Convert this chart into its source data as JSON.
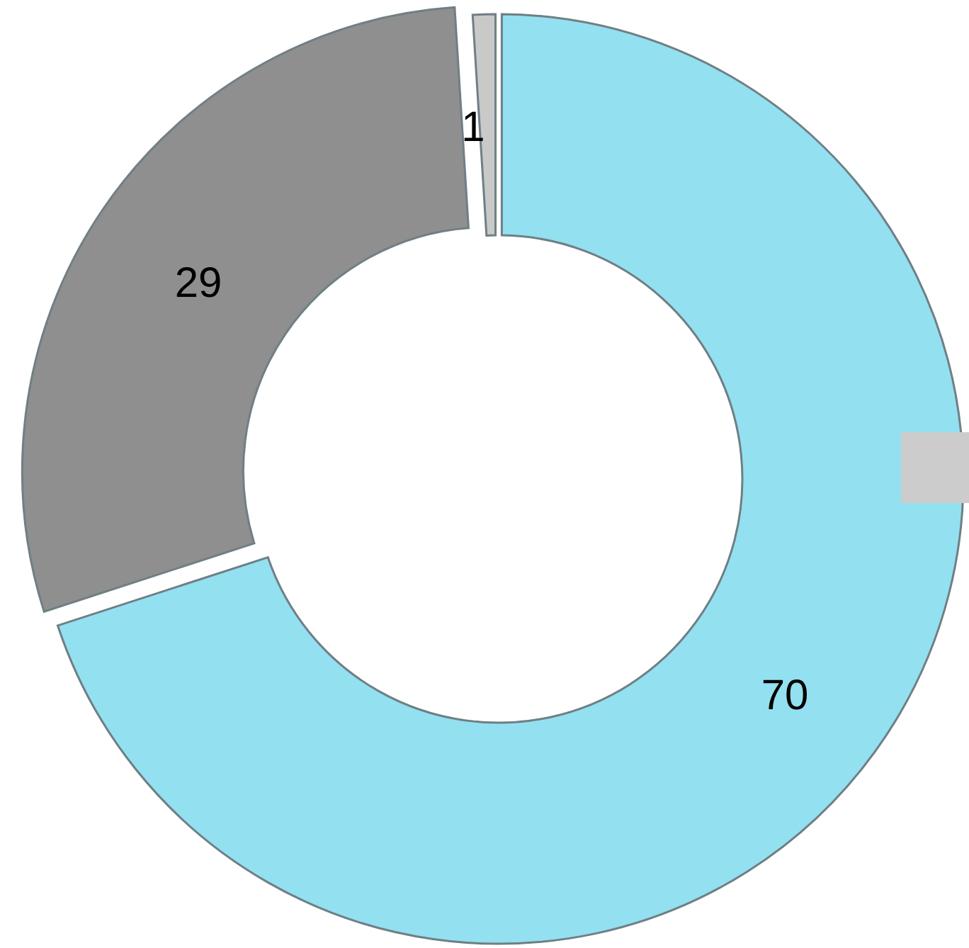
{
  "chart_data": {
    "type": "donut",
    "categories": [
      null,
      null,
      null
    ],
    "values": [
      70,
      29,
      1
    ],
    "colors": [
      "#93e0f0",
      "#8f8f8f",
      "#c9c9c9"
    ],
    "data_labels": true
  }
}
